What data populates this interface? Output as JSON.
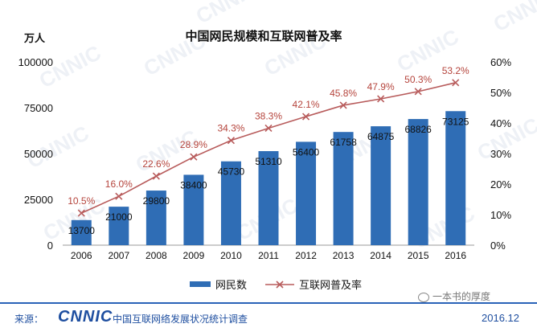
{
  "chart_data": {
    "type": "bar+line",
    "title": "中国网民规模和互联网普及率",
    "y_left_unit": "万人",
    "categories": [
      "2006",
      "2007",
      "2008",
      "2009",
      "2010",
      "2011",
      "2012",
      "2013",
      "2014",
      "2015",
      "2016"
    ],
    "series": [
      {
        "name": "网民数",
        "type": "bar",
        "axis": "left",
        "values": [
          13700,
          21000,
          29800,
          38400,
          45730,
          51310,
          56400,
          61758,
          64875,
          68826,
          73125
        ]
      },
      {
        "name": "互联网普及率",
        "type": "line",
        "axis": "right",
        "values": [
          10.5,
          16.0,
          22.6,
          28.9,
          34.3,
          38.3,
          42.1,
          45.8,
          47.9,
          50.3,
          53.2
        ],
        "labels": [
          "10.5%",
          "16.0%",
          "22.6%",
          "28.9%",
          "34.3%",
          "38.3%",
          "42.1%",
          "45.8%",
          "47.9%",
          "50.3%",
          "53.2%"
        ]
      }
    ],
    "y_left": {
      "range": [
        0,
        100000
      ],
      "ticks": [
        "0",
        "25000",
        "50000",
        "75000",
        "100000"
      ]
    },
    "y_right": {
      "range": [
        0,
        60
      ],
      "ticks": [
        "0%",
        "10%",
        "20%",
        "30%",
        "40%",
        "50%",
        "60%"
      ]
    },
    "grid": false,
    "legend": "bottom",
    "colors": {
      "bar": "#2f6db5",
      "line": "#b85c5c",
      "line_label": "#b5443c",
      "text": "#222222"
    }
  },
  "footer": {
    "source_label": "来源：",
    "logo": "CNNIC",
    "survey": "中国互联网络发展状况统计调查",
    "date": "2016.12",
    "wechat": "一本书的厚度"
  },
  "watermark": "CNNIC"
}
